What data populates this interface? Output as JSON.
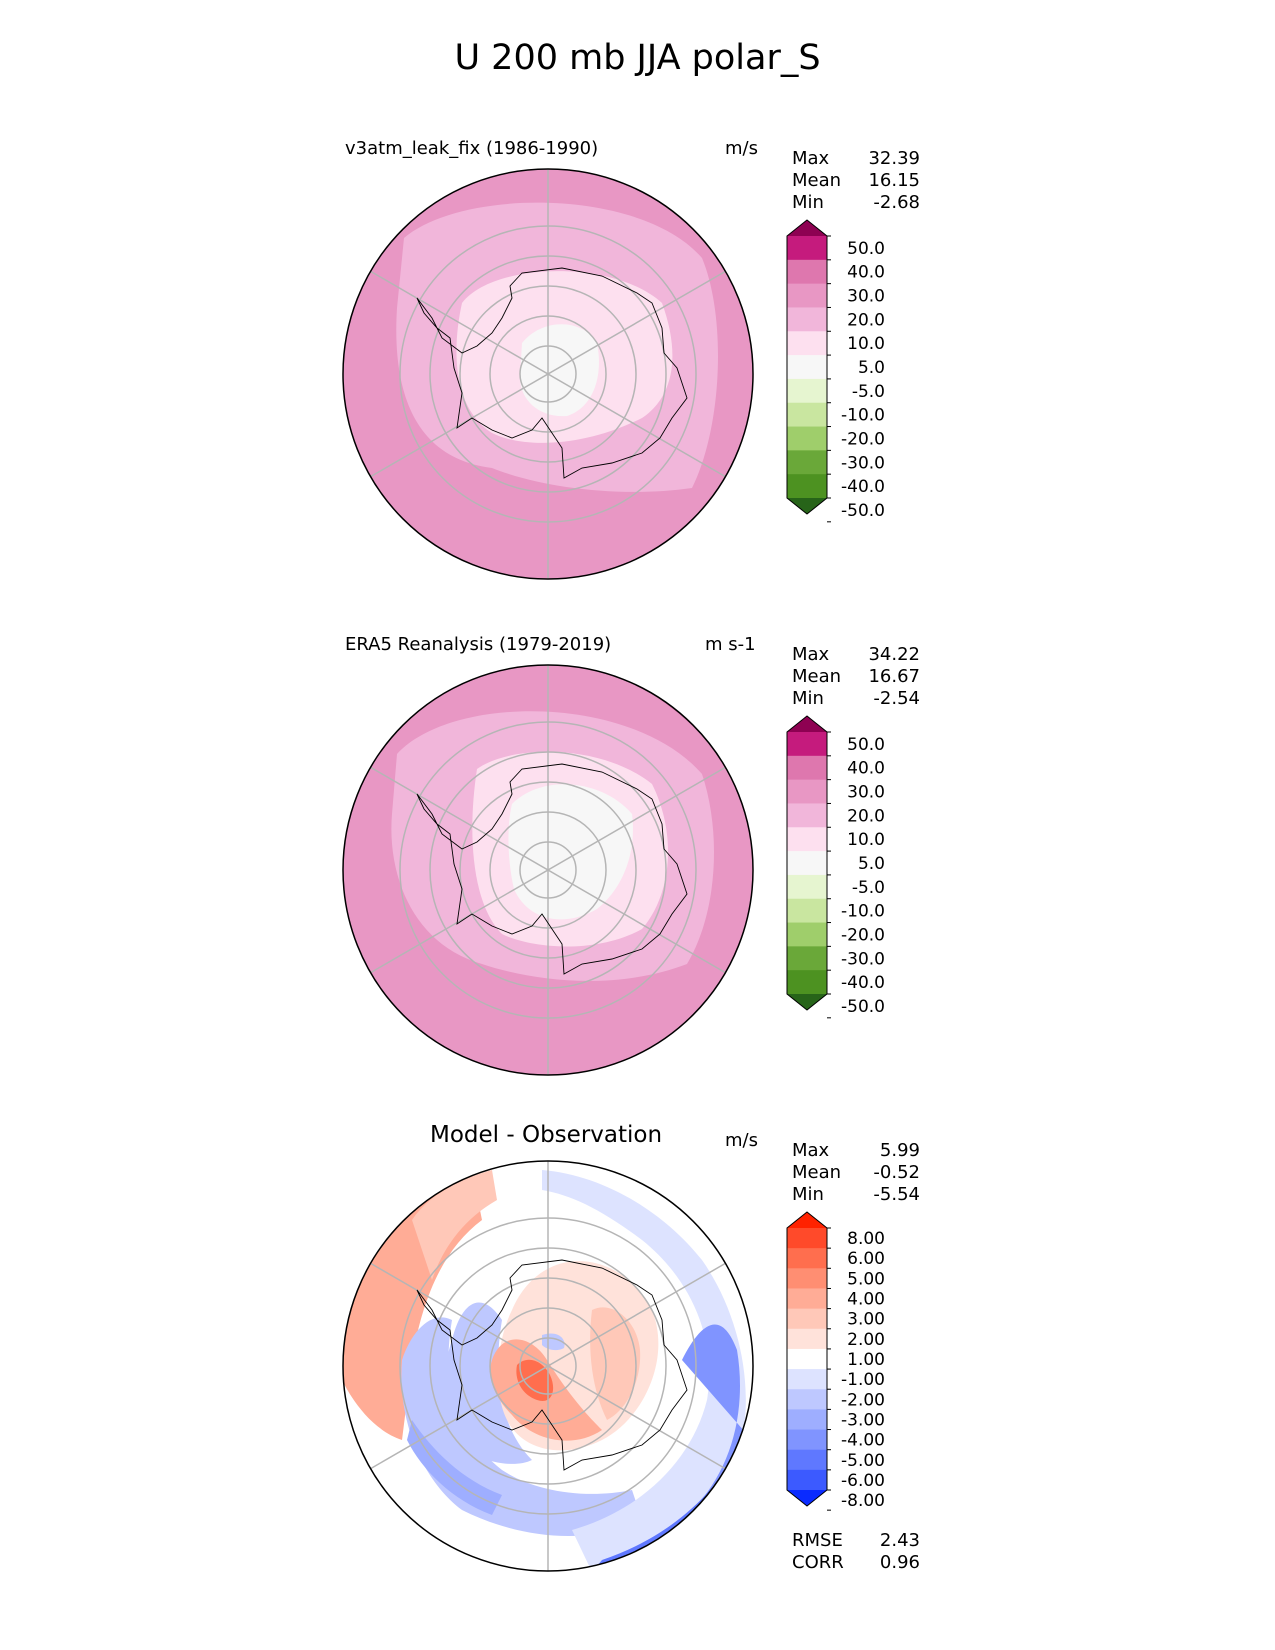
{
  "figure_title": "U 200 mb JJA polar_S",
  "chart_data": [
    {
      "type": "polar-contour-map",
      "title": "v3atm_leak_fix (1986-1990)",
      "units": "m/s",
      "stats": {
        "max_label": "Max",
        "max": "32.39",
        "mean_label": "Mean",
        "mean": "16.15",
        "min_label": "Min",
        "min": "-2.68"
      },
      "colorbar": {
        "ticks": [
          "50.0",
          "40.0",
          "30.0",
          "20.0",
          "10.0",
          "5.0",
          "-5.0",
          "-10.0",
          "-20.0",
          "-30.0",
          "-40.0",
          "-50.0"
        ],
        "colors": [
          "#8e0152",
          "#c51b7d",
          "#de77ae",
          "#e897c4",
          "#f1b6da",
          "#fde0ef",
          "#f7f7f7",
          "#e6f5d0",
          "#c9e6a0",
          "#9fce6b",
          "#6aa839",
          "#4d9221",
          "#276419"
        ]
      }
    },
    {
      "type": "polar-contour-map",
      "title": "ERA5 Reanalysis (1979-2019)",
      "units": "m s-1",
      "stats": {
        "max_label": "Max",
        "max": "34.22",
        "mean_label": "Mean",
        "mean": "16.67",
        "min_label": "Min",
        "min": "-2.54"
      },
      "colorbar": {
        "ticks": [
          "50.0",
          "40.0",
          "30.0",
          "20.0",
          "10.0",
          "5.0",
          "-5.0",
          "-10.0",
          "-20.0",
          "-30.0",
          "-40.0",
          "-50.0"
        ],
        "colors": [
          "#8e0152",
          "#c51b7d",
          "#de77ae",
          "#e897c4",
          "#f1b6da",
          "#fde0ef",
          "#f7f7f7",
          "#e6f5d0",
          "#c9e6a0",
          "#9fce6b",
          "#6aa839",
          "#4d9221",
          "#276419"
        ]
      }
    },
    {
      "type": "polar-contour-map",
      "title": "Model - Observation",
      "units": "m/s",
      "stats": {
        "max_label": "Max",
        "max": "5.99",
        "mean_label": "Mean",
        "mean": "-0.52",
        "min_label": "Min",
        "min": "-5.54"
      },
      "colorbar": {
        "ticks": [
          "8.00",
          "6.00",
          "5.00",
          "4.00",
          "3.00",
          "2.00",
          "1.00",
          "-1.00",
          "-2.00",
          "-3.00",
          "-4.00",
          "-5.00",
          "-6.00",
          "-8.00"
        ],
        "colors": [
          "#ff2200",
          "#ff4a2a",
          "#ff6e4e",
          "#ff8e72",
          "#ffac96",
          "#ffc8b8",
          "#ffe2da",
          "#ffffff",
          "#dde3ff",
          "#bec8ff",
          "#9eaeff",
          "#8094ff",
          "#5f78ff",
          "#3c5aff",
          "#0a2bff"
        ]
      },
      "metrics": {
        "rmse_label": "RMSE",
        "rmse": "2.43",
        "corr_label": "CORR",
        "corr": "0.96"
      }
    }
  ],
  "palette": {
    "pink_outer": "#e897c4",
    "pink_mid": "#f1b6da",
    "pink_light": "#fde0ef",
    "pink_dark": "#de77ae",
    "near_zero": "#f7f7f7",
    "red_1": "#ffe2da",
    "red_2": "#ffc8b8",
    "red_3": "#ffac96",
    "red_4": "#ff8e72",
    "red_5": "#ff6e4e",
    "blue_1": "#dde3ff",
    "blue_2": "#bec8ff",
    "blue_3": "#9eaeff",
    "blue_4": "#8094ff",
    "blue_5": "#5f78ff",
    "blue_6": "#3c5aff"
  }
}
